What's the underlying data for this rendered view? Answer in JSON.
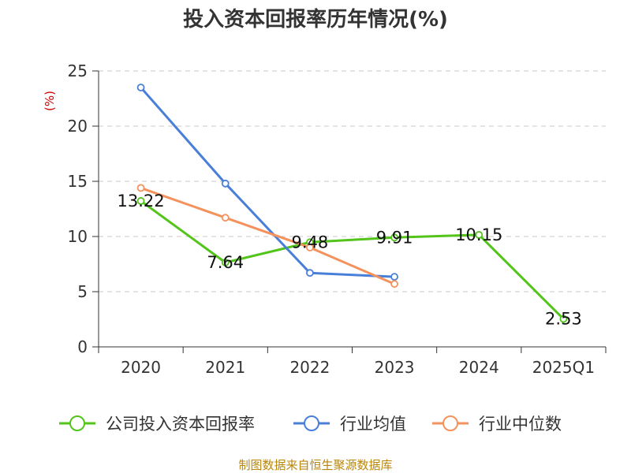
{
  "chart_data": {
    "type": "line",
    "title": "投入资本回报率历年情况(%)",
    "ylabel": "(%)",
    "xlabel": "",
    "categories": [
      "2020",
      "2021",
      "2022",
      "2023",
      "2024",
      "2025Q1"
    ],
    "yticks": [
      "0",
      "5",
      "10",
      "15",
      "20",
      "25"
    ],
    "ylim": [
      0,
      25
    ],
    "grid": true,
    "legend_position": "bottom",
    "series": [
      {
        "name": "公司投入资本回报率",
        "color": "#52c41a",
        "values": [
          13.22,
          7.64,
          9.48,
          9.91,
          10.15,
          2.53
        ],
        "labels": [
          "13.22",
          "7.64",
          "9.48",
          "9.91",
          "10.15",
          "2.53"
        ]
      },
      {
        "name": "行业均值",
        "color": "#4a7fd9",
        "values": [
          23.5,
          14.8,
          6.7,
          6.35,
          null,
          null
        ]
      },
      {
        "name": "行业中位数",
        "color": "#f4925e",
        "values": [
          14.4,
          11.7,
          9.0,
          5.7,
          null,
          null
        ]
      }
    ]
  },
  "source": "制图数据来自恒生聚源数据库"
}
